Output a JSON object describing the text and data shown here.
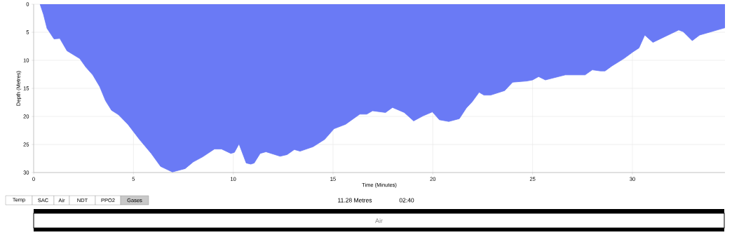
{
  "chart_data": {
    "type": "area",
    "xlabel": "Time (Minutes)",
    "ylabel": "Depth (Metres)",
    "series": [
      {
        "color": "#6a7af5",
        "x": [
          0.32,
          0.49,
          0.67,
          1.02,
          1.31,
          1.67,
          2.31,
          2.61,
          2.96,
          3.31,
          3.6,
          3.9,
          4.25,
          4.72,
          5.3,
          5.89,
          6.36,
          6.95,
          7.59,
          8.0,
          8.47,
          9.06,
          9.41,
          9.88,
          10.06,
          10.29,
          10.65,
          10.88,
          11.05,
          11.35,
          11.64,
          12.35,
          12.7,
          13.06,
          13.35,
          14.0,
          14.58,
          15.05,
          15.63,
          16.34,
          16.69,
          16.98,
          17.63,
          17.98,
          18.57,
          19.04,
          19.51,
          19.98,
          20.33,
          20.8,
          21.33,
          21.68,
          21.97,
          22.32,
          22.56,
          22.9,
          23.6,
          24.0,
          24.7,
          25.0,
          25.3,
          25.64,
          26.64,
          27.63,
          27.99,
          28.4,
          28.63,
          28.98,
          29.57,
          30.03,
          30.33,
          30.62,
          31.03,
          32.32,
          32.55,
          33.0,
          33.37,
          34.64
        ],
        "values": [
          0,
          1.8,
          4.3,
          6.2,
          6.1,
          8.3,
          9.7,
          11.2,
          12.6,
          14.7,
          17.2,
          18.9,
          19.7,
          21.4,
          24.1,
          26.6,
          28.9,
          29.9,
          29.3,
          28.1,
          27.2,
          25.8,
          25.8,
          26.6,
          26.4,
          24.9,
          28.3,
          28.5,
          28.3,
          26.6,
          26.3,
          27.1,
          26.8,
          25.9,
          26.2,
          25.4,
          24.1,
          22.2,
          21.4,
          19.6,
          19.6,
          19.0,
          19.3,
          18.4,
          19.3,
          20.8,
          19.9,
          19.2,
          20.6,
          20.9,
          20.4,
          18.5,
          17.4,
          15.7,
          16.2,
          16.2,
          15.4,
          13.9,
          13.7,
          13.5,
          12.9,
          13.5,
          12.6,
          12.6,
          11.7,
          11.9,
          11.9,
          11.0,
          9.7,
          8.5,
          7.8,
          5.5,
          6.8,
          4.6,
          4.9,
          6.5,
          5.5,
          4.2
        ]
      }
    ],
    "xlim": [
      0,
      34.64
    ],
    "ylim": [
      30,
      0
    ],
    "xticks": [
      0,
      5,
      10,
      15,
      20,
      25,
      30
    ],
    "yticks": [
      0,
      5,
      10,
      15,
      20,
      25,
      30
    ],
    "grid": true,
    "annotations": [
      "Temp",
      "SAC",
      "Air",
      "NDT",
      "PPO2",
      "Gases",
      "11.28 Metres",
      "02:40",
      "Air"
    ]
  }
}
